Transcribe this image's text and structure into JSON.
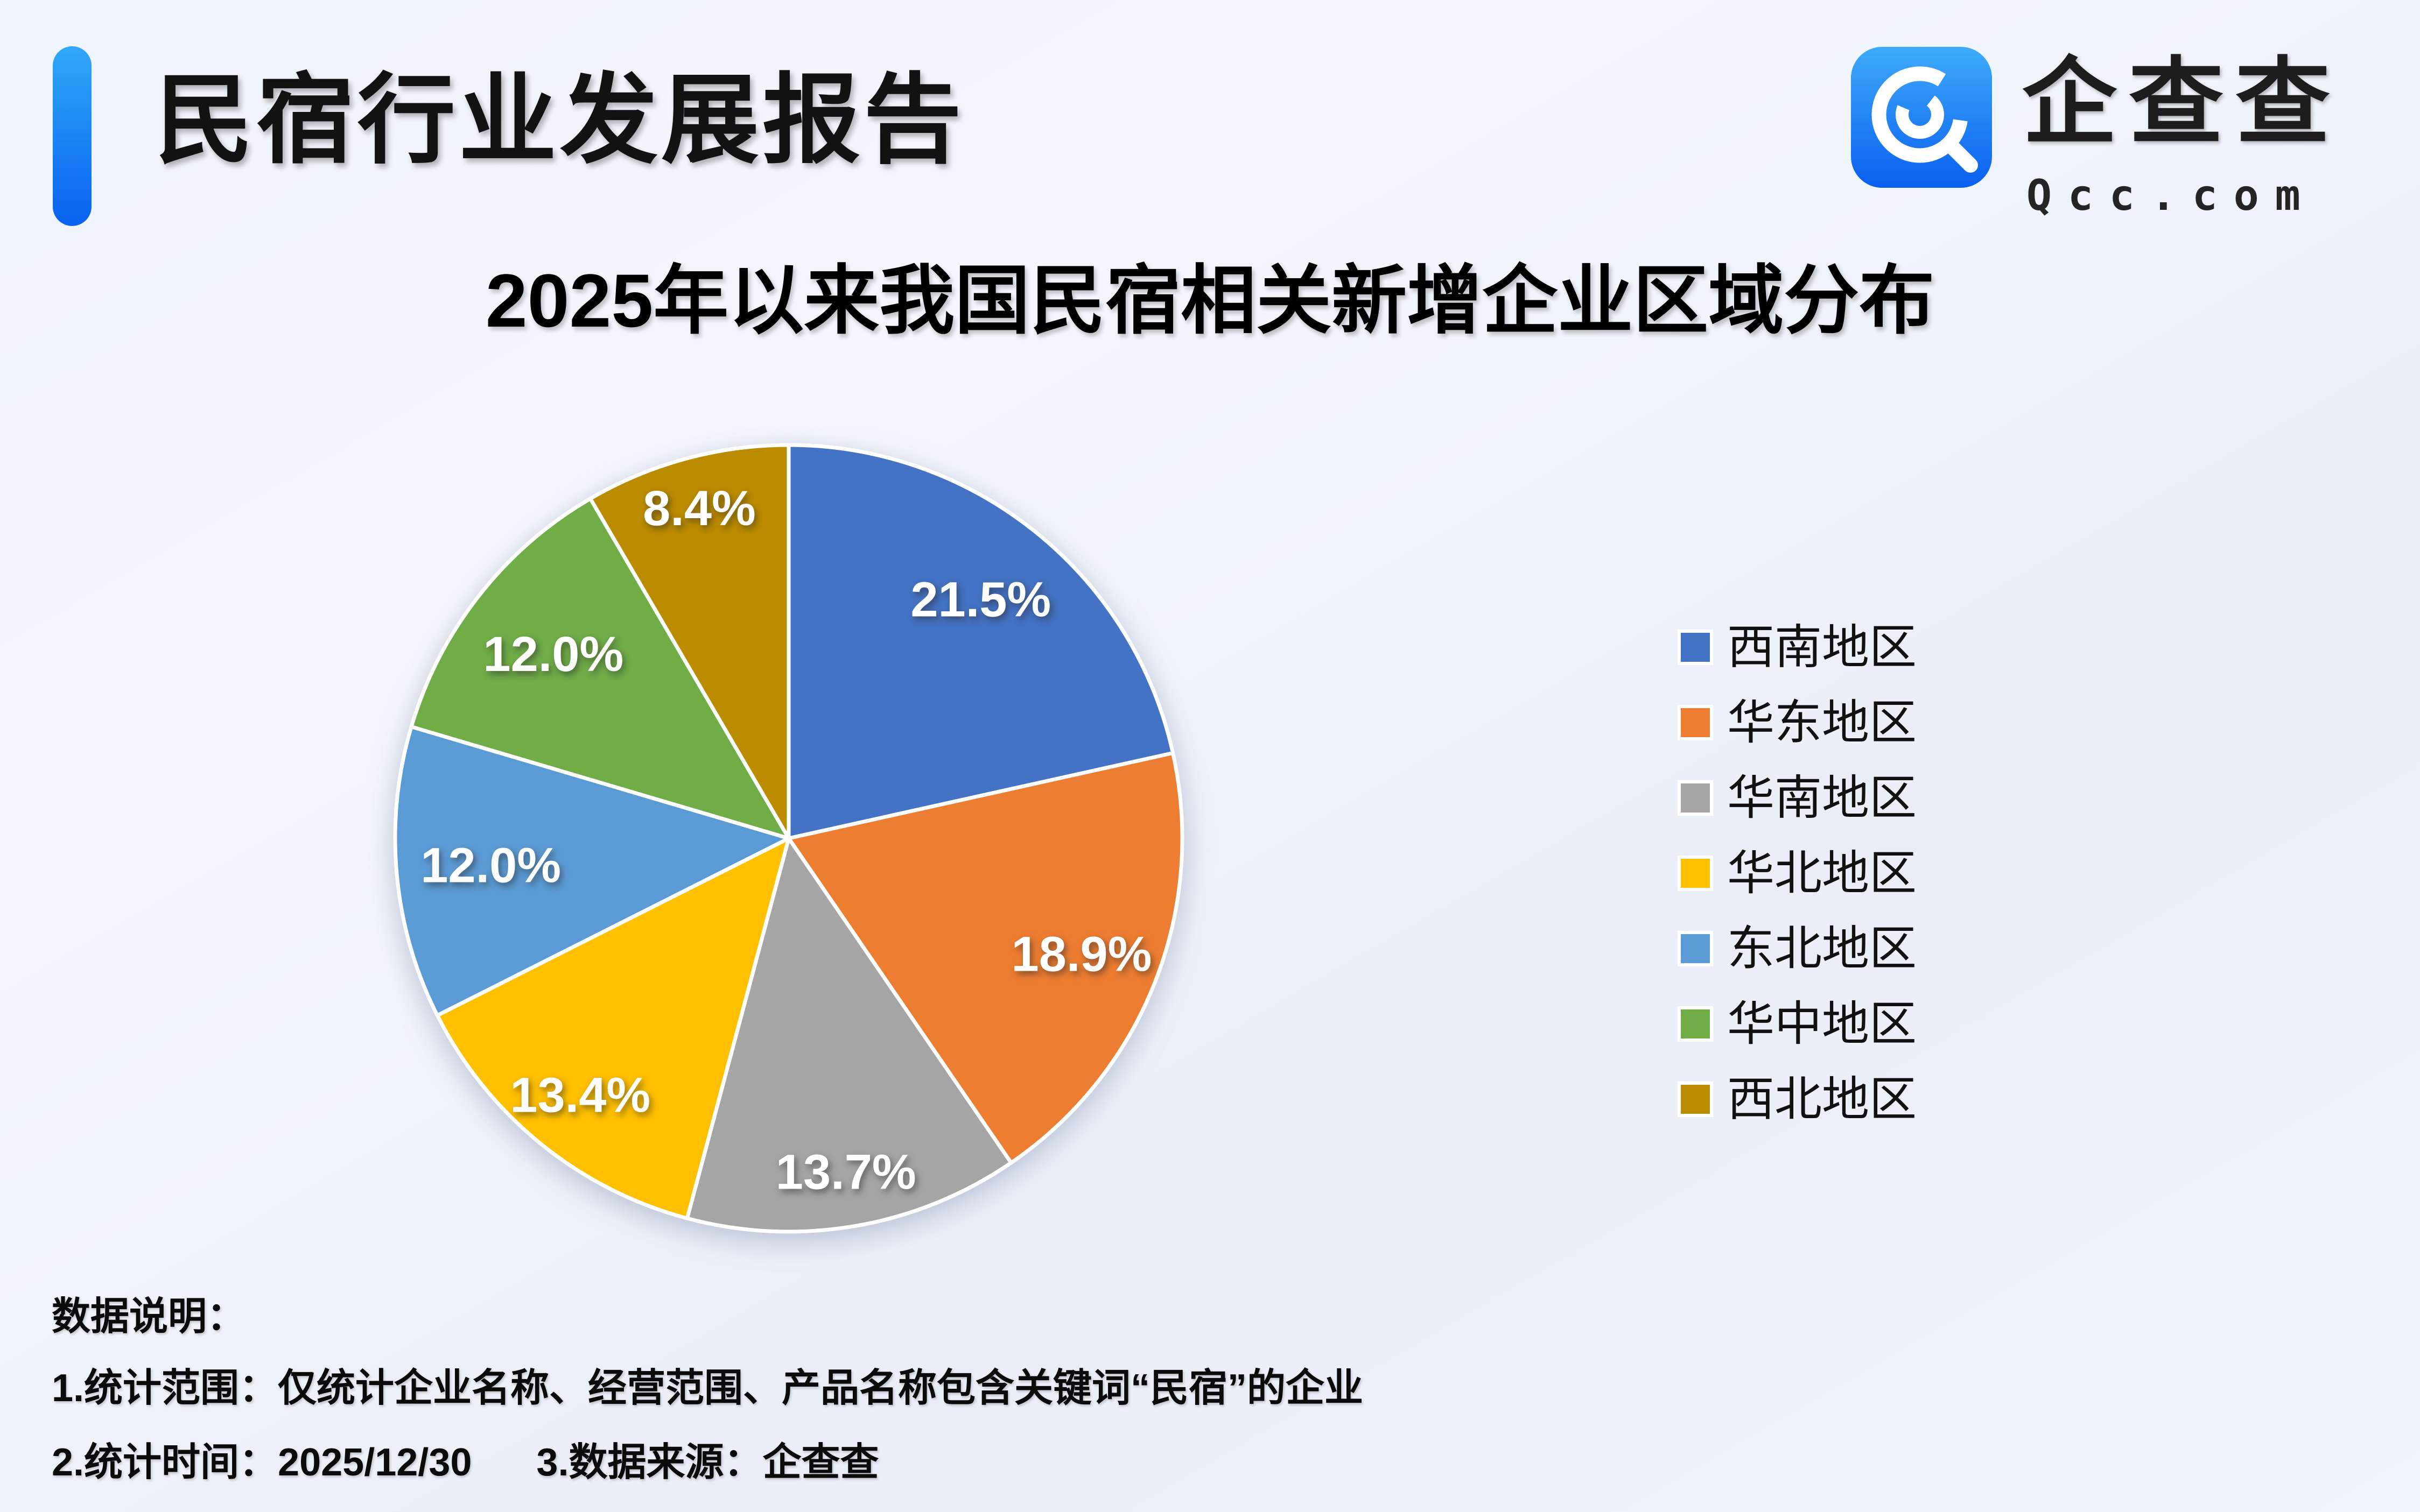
{
  "page": {
    "background_light": "#f4f7fd",
    "background_base": "#e9eef8"
  },
  "header": {
    "title": "民宿行业发展报告",
    "accent_bar_top_color": "#31a8f7",
    "accent_bar_bottom_color": "#0761f0"
  },
  "brand": {
    "icon": "qcc-swirl-icon",
    "icon_gradient_top": "#3dabfa",
    "icon_gradient_bottom": "#0a5fef",
    "name_cn": "企查查",
    "domain": "Qcc.com"
  },
  "chart_data": {
    "type": "pie",
    "title": "2025年以来我国民宿相关新增企业区域分布",
    "unit": "%",
    "start_angle_deg": 0,
    "direction": "clockwise",
    "legend_position": "right",
    "categories": [
      "西南地区",
      "华东地区",
      "华南地区",
      "华北地区",
      "东北地区",
      "华中地区",
      "西北地区"
    ],
    "values": [
      21.5,
      18.9,
      13.7,
      13.4,
      12.0,
      12.0,
      8.4
    ],
    "colors": [
      "#4472c4",
      "#ed7d31",
      "#a5a5a5",
      "#ffc000",
      "#5b9bd5",
      "#70ad47",
      "#bc8c00"
    ],
    "label_format": "{value}%",
    "label_color": "#ffffff",
    "slice_border_color": "#ffffff"
  },
  "footer": {
    "heading": "数据说明：",
    "notes": [
      "1.统计范围：仅统计企业名称、经营范围、产品名称包含关键词“民宿”的企业",
      "2.统计时间：2025/12/30",
      "3.数据来源：企查查"
    ]
  }
}
